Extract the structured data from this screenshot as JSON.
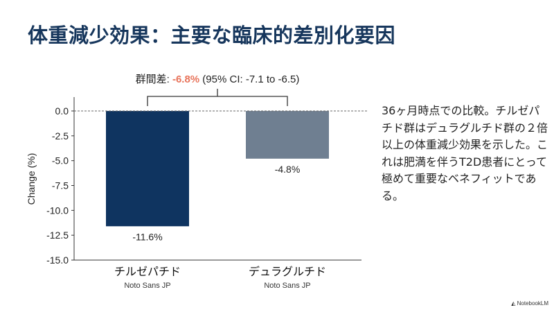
{
  "title": "体重減少効果：主要な臨床的差別化要因",
  "description": "36ヶ月時点での比較。チルゼパチド群はデュラグルチド群の２倍以上の体重減少効果を示した。これは肥満を伴うT2D患者にとって極めて重要なベネフィットである。",
  "footer": "NotebookLM",
  "chart_data": {
    "type": "bar",
    "categories": [
      "チルゼパチド",
      "デュラグルチド"
    ],
    "category_sublabels": [
      "Noto Sans JP",
      "Noto Sans JP"
    ],
    "values": [
      -11.6,
      -4.8
    ],
    "value_labels": [
      "-11.6%",
      "-4.8%"
    ],
    "colors": [
      "#0f3460",
      "#6f7f91"
    ],
    "ylabel": "Change (%)",
    "ylim": [
      -15.0,
      0.0
    ],
    "yticks": [
      "0.0",
      "-2.5",
      "-5.0",
      "-7.5",
      "-10.0",
      "-12.5",
      "-15.0"
    ],
    "ytick_values": [
      0,
      -2.5,
      -5,
      -7.5,
      -10,
      -12.5,
      -15
    ],
    "zero_line": "dashed",
    "grid": false,
    "annotation": {
      "prefix": "群間差: ",
      "highlight": "-6.8%",
      "suffix": " (95% CI: -7.1 to -6.5)",
      "highlight_color": "#e8735a"
    }
  }
}
